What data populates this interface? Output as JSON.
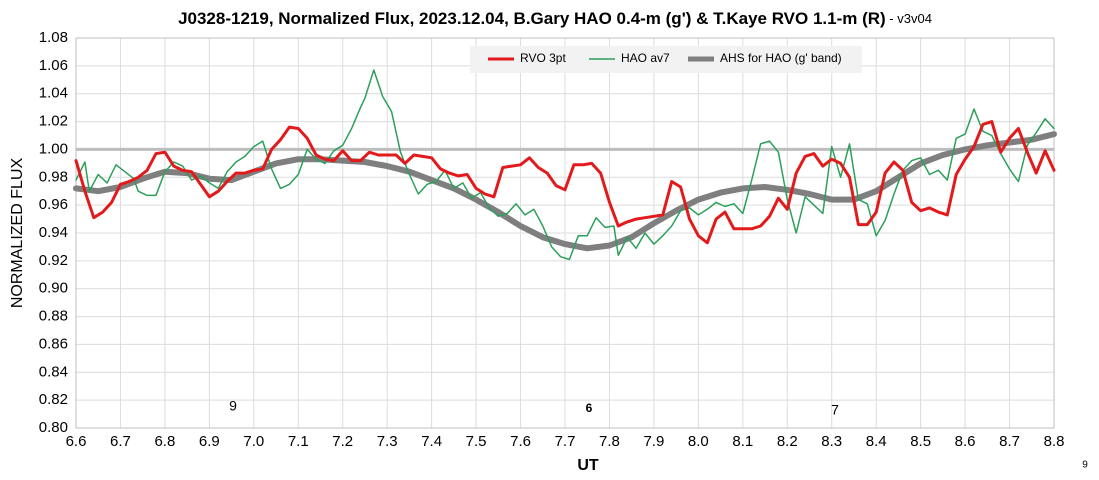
{
  "chart_data": {
    "type": "line",
    "title": "J0328-1219, Normalized Flux, 2023.12.04, B.Gary HAO 0.4-m (g') & T.Kaye RVO 1.1-m (R)",
    "subtitle": " - v3v04",
    "y_label": "NORMALIZED FLUX",
    "x_label": "UT",
    "annotations": [
      "9",
      "6",
      "7",
      "9"
    ],
    "xlim": [
      6.6,
      8.8
    ],
    "xticks": [
      6.6,
      6.7,
      6.8,
      6.9,
      {
        "value": 7,
        "label": "7.0"
      },
      7.1,
      7.2,
      7.3,
      7.4,
      7.5,
      7.6,
      7.7,
      7.8,
      7.9,
      {
        "value": 8,
        "label": "8.0"
      },
      8.1,
      8.2,
      8.3,
      8.4,
      8.5,
      8.6,
      8.7,
      8.8
    ],
    "ylim": [
      0.8,
      1.08
    ],
    "yticks": [
      {
        "value": 0.8,
        "label": "0.80"
      },
      0.82,
      0.84,
      0.86,
      0.88,
      {
        "value": 0.9,
        "label": "0.90"
      },
      0.92,
      0.94,
      0.96,
      0.98,
      {
        "value": 1,
        "label": "1.00"
      },
      1.02,
      1.04,
      1.06,
      1.08
    ],
    "grid": true,
    "reference_line": 1,
    "legend": "top",
    "series": [
      {
        "name": "RVO 3pt",
        "color": "#e31a1c",
        "width": 3,
        "x": [
          6.6,
          6.62,
          6.64,
          6.66,
          6.68,
          6.7,
          6.72,
          6.74,
          6.76,
          6.78,
          6.8,
          6.82,
          6.84,
          6.86,
          6.88,
          6.9,
          6.92,
          6.94,
          6.96,
          6.98,
          7,
          7.02,
          7.04,
          7.06,
          7.08,
          7.1,
          7.12,
          7.14,
          7.16,
          7.18,
          7.2,
          7.22,
          7.24,
          7.26,
          7.28,
          7.3,
          7.32,
          7.34,
          7.36,
          7.38,
          7.4,
          7.42,
          7.44,
          7.46,
          7.48,
          7.5,
          7.52,
          7.54,
          7.56,
          7.58,
          7.6,
          7.62,
          7.64,
          7.66,
          7.68,
          7.7,
          7.72,
          7.74,
          7.76,
          7.78,
          7.8,
          7.82,
          7.84,
          7.86,
          7.88,
          7.9,
          7.92,
          7.94,
          7.96,
          7.98,
          8,
          8.02,
          8.04,
          8.06,
          8.08,
          8.1,
          8.12,
          8.14,
          8.16,
          8.18,
          8.2,
          8.22,
          8.24,
          8.26,
          8.28,
          8.3,
          8.32,
          8.34,
          8.36,
          8.38,
          8.4,
          8.42,
          8.44,
          8.46,
          8.48,
          8.5,
          8.52,
          8.54,
          8.56,
          8.58,
          8.6,
          8.62,
          8.64,
          8.66,
          8.68,
          8.7,
          8.72,
          8.74,
          8.76,
          8.78,
          8.8
        ],
        "values": [
          0.992,
          0.97,
          0.951,
          0.955,
          0.962,
          0.975,
          0.977,
          0.98,
          0.985,
          0.997,
          0.998,
          0.988,
          0.985,
          0.984,
          0.975,
          0.966,
          0.97,
          0.977,
          0.983,
          0.983,
          0.985,
          0.986,
          1.0,
          1.007,
          1.016,
          1.015,
          1.008,
          0.996,
          0.993,
          0.992,
          0.999,
          0.992,
          0.992,
          0.998,
          0.996,
          0.996,
          0.996,
          0.99,
          0.996,
          0.995,
          0.994,
          0.986,
          0.983,
          0.981,
          0.982,
          0.972,
          0.968,
          0.966,
          0.987,
          0.988,
          0.989,
          0.994,
          0.987,
          0.983,
          0.974,
          0.971,
          0.989,
          0.989,
          0.99,
          0.983,
          0.962,
          0.945,
          0.948,
          0.95,
          0.951,
          0.952,
          0.953,
          0.977,
          0.973,
          0.95,
          0.938,
          0.933,
          0.95,
          0.955,
          0.943,
          0.943,
          0.943,
          0.945,
          0.952,
          0.965,
          0.957,
          0.983,
          0.995,
          0.997,
          0.988,
          0.993,
          0.99,
          0.98,
          0.946,
          0.946,
          0.955,
          0.983,
          0.991,
          0.985,
          0.962,
          0.956,
          0.958,
          0.955,
          0.953,
          0.982,
          0.993,
          1.002,
          1.018,
          1.02,
          0.998,
          1.008,
          1.015,
          0.998,
          0.983,
          0.999,
          0.985
        ]
      },
      {
        "name": "HAO av7",
        "color": "#2ca05a",
        "width": 1.5,
        "x": [
          6.6,
          6.62,
          6.63,
          6.65,
          6.67,
          6.69,
          6.71,
          6.73,
          6.74,
          6.76,
          6.78,
          6.8,
          6.82,
          6.84,
          6.86,
          6.88,
          6.9,
          6.92,
          6.94,
          6.96,
          6.98,
          7,
          7.02,
          7.04,
          7.06,
          7.08,
          7.1,
          7.12,
          7.14,
          7.16,
          7.18,
          7.2,
          7.22,
          7.24,
          7.25,
          7.27,
          7.29,
          7.31,
          7.33,
          7.35,
          7.37,
          7.39,
          7.41,
          7.43,
          7.45,
          7.47,
          7.49,
          7.51,
          7.53,
          7.55,
          7.57,
          7.59,
          7.61,
          7.63,
          7.65,
          7.67,
          7.69,
          7.71,
          7.73,
          7.75,
          7.77,
          7.79,
          7.81,
          7.82,
          7.84,
          7.86,
          7.88,
          7.9,
          7.92,
          7.94,
          7.96,
          7.98,
          8,
          8.02,
          8.04,
          8.06,
          8.08,
          8.1,
          8.12,
          8.14,
          8.16,
          8.18,
          8.2,
          8.22,
          8.24,
          8.26,
          8.28,
          8.3,
          8.32,
          8.34,
          8.36,
          8.38,
          8.4,
          8.42,
          8.44,
          8.46,
          8.48,
          8.5,
          8.52,
          8.54,
          8.56,
          8.58,
          8.6,
          8.62,
          8.64,
          8.66,
          8.68,
          8.7,
          8.72,
          8.74,
          8.76,
          8.78,
          8.8
        ],
        "values": [
          0.978,
          0.991,
          0.97,
          0.982,
          0.976,
          0.989,
          0.984,
          0.979,
          0.97,
          0.967,
          0.967,
          0.984,
          0.991,
          0.988,
          0.978,
          0.981,
          0.976,
          0.972,
          0.984,
          0.991,
          0.995,
          1.002,
          1.006,
          0.986,
          0.972,
          0.975,
          0.982,
          1.0,
          0.993,
          0.99,
          0.999,
          1.003,
          1.015,
          1.03,
          1.037,
          1.057,
          1.038,
          1.027,
          0.998,
          0.982,
          0.968,
          0.975,
          0.977,
          0.985,
          0.972,
          0.976,
          0.965,
          0.969,
          0.958,
          0.952,
          0.954,
          0.961,
          0.953,
          0.957,
          0.945,
          0.93,
          0.923,
          0.921,
          0.938,
          0.938,
          0.951,
          0.944,
          0.945,
          0.924,
          0.937,
          0.929,
          0.94,
          0.932,
          0.938,
          0.945,
          0.956,
          0.958,
          0.953,
          0.957,
          0.962,
          0.959,
          0.961,
          0.954,
          0.978,
          1.004,
          1.006,
          0.998,
          0.964,
          0.94,
          0.966,
          0.96,
          0.954,
          1.002,
          0.98,
          1.004,
          0.964,
          0.961,
          0.938,
          0.949,
          0.968,
          0.985,
          0.992,
          0.994,
          0.982,
          0.985,
          0.978,
          1.008,
          1.011,
          1.029,
          1.013,
          1.01,
          0.997,
          0.986,
          0.977,
          1.003,
          1.012,
          1.022,
          1.015
        ]
      },
      {
        "name": "AHS for HAO (g' band)",
        "color": "#7f7f7f",
        "width": 6,
        "x": [
          6.6,
          6.65,
          6.7,
          6.75,
          6.8,
          6.85,
          6.9,
          6.95,
          7,
          7.05,
          7.1,
          7.15,
          7.2,
          7.25,
          7.3,
          7.35,
          7.4,
          7.45,
          7.5,
          7.55,
          7.6,
          7.65,
          7.7,
          7.75,
          7.8,
          7.85,
          7.9,
          7.95,
          8,
          8.05,
          8.1,
          8.15,
          8.2,
          8.25,
          8.3,
          8.35,
          8.4,
          8.45,
          8.5,
          8.55,
          8.6,
          8.65,
          8.7,
          8.75,
          8.8
        ],
        "values": [
          0.972,
          0.97,
          0.973,
          0.979,
          0.984,
          0.983,
          0.979,
          0.978,
          0.984,
          0.99,
          0.993,
          0.993,
          0.992,
          0.991,
          0.988,
          0.984,
          0.978,
          0.972,
          0.964,
          0.955,
          0.945,
          0.937,
          0.932,
          0.929,
          0.931,
          0.937,
          0.947,
          0.956,
          0.964,
          0.969,
          0.972,
          0.973,
          0.971,
          0.968,
          0.964,
          0.964,
          0.97,
          0.98,
          0.99,
          0.996,
          1.0,
          1.003,
          1.005,
          1.007,
          1.011
        ]
      }
    ]
  }
}
